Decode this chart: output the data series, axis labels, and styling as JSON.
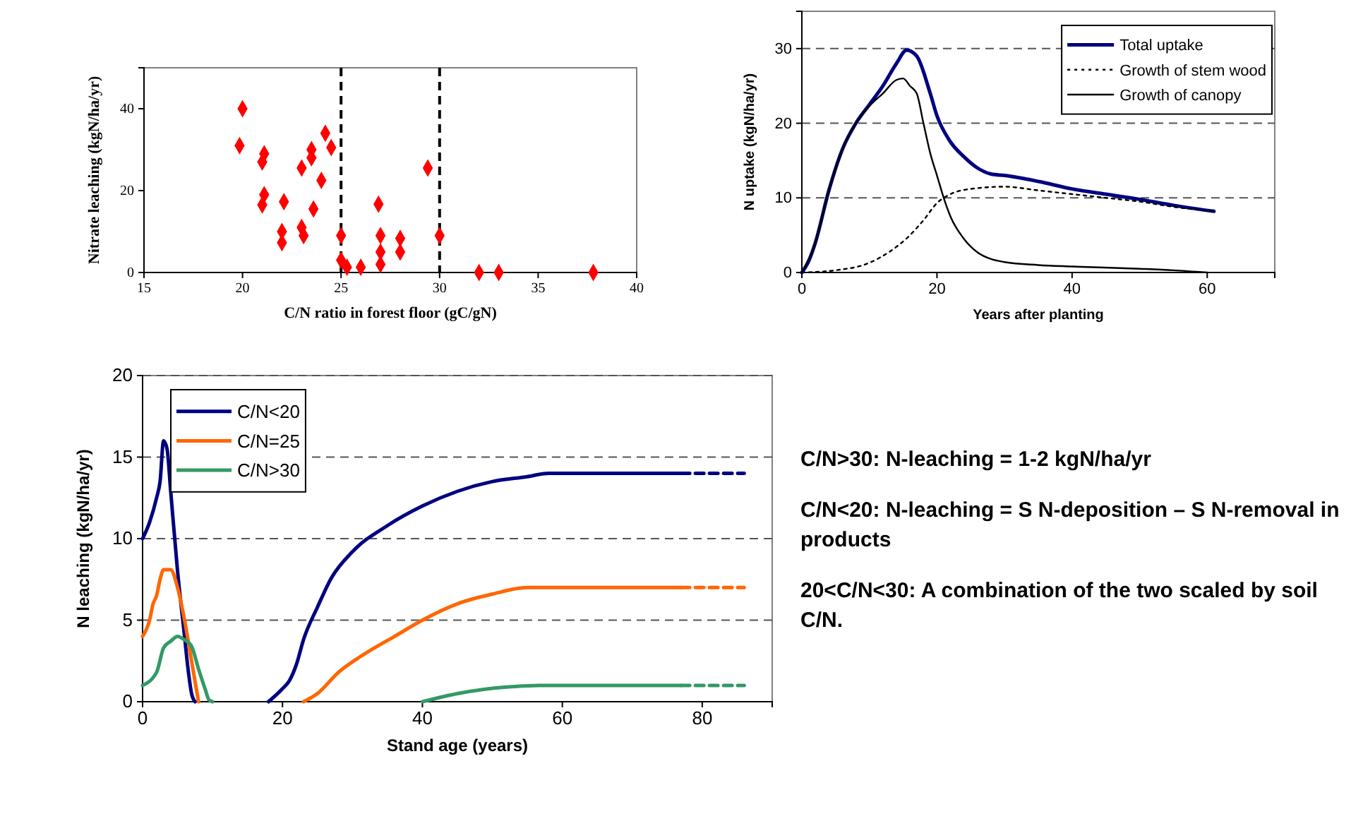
{
  "chart_data": [
    {
      "type": "scatter",
      "xlabel": "C/N ratio in forest floor (gC/gN)",
      "ylabel": "Nitrate leaching (kgN/ha/yr)",
      "marker": "diamond",
      "color": "#ff0000",
      "x": [
        19.85,
        20,
        21,
        21.1,
        21.1,
        21,
        22.1,
        22,
        22,
        23,
        23,
        23.1,
        23.5,
        23.5,
        23.6,
        24,
        24.2,
        24.5,
        25,
        25,
        25.3,
        26,
        26.9,
        27,
        27,
        27,
        28,
        28,
        29.4,
        30,
        32,
        33,
        37.8
      ],
      "values": [
        31,
        40,
        27,
        29,
        19,
        16.5,
        17.3,
        10,
        7.3,
        25.5,
        11,
        9,
        30,
        28,
        15.5,
        22.5,
        34,
        30.5,
        9,
        3,
        1.3,
        1.3,
        16.7,
        9,
        5,
        2,
        8.3,
        5,
        25.5,
        9,
        0,
        0,
        0
      ],
      "xlim": [
        15,
        40
      ],
      "xticks": [
        15,
        20,
        25,
        30,
        35,
        40
      ],
      "ylim": [
        0,
        50
      ],
      "yticks": [
        0,
        20,
        40
      ],
      "ref_lines": [
        {
          "axis": "x",
          "value": 25,
          "color": "#000000",
          "line_style": "dashed"
        },
        {
          "axis": "x",
          "value": 30,
          "color": "#000000",
          "line_style": "dashed"
        }
      ]
    },
    {
      "type": "line",
      "xlabel": "Years after planting",
      "ylabel": "N uptake (kgN/ha/yr)",
      "legend": "top right",
      "grid": "y",
      "xlim": [
        0,
        70
      ],
      "xticks": [
        0,
        20,
        40,
        60
      ],
      "ylim": [
        0,
        35
      ],
      "yticks": [
        0,
        10,
        20,
        30
      ],
      "series": [
        {
          "name": "Total uptake",
          "color": "#000080",
          "line_style": "solid",
          "x": [
            0,
            1,
            2,
            4,
            6,
            8,
            10,
            12,
            14,
            15.5,
            17,
            19,
            20,
            22,
            24,
            26,
            28,
            30,
            35,
            40,
            45,
            50,
            55,
            61
          ],
          "values": [
            0,
            1.5,
            4,
            11,
            16.5,
            20,
            22.5,
            25,
            28,
            29.8,
            29,
            24,
            21,
            17.5,
            15.5,
            14,
            13.2,
            13,
            12.2,
            11.2,
            10.5,
            9.8,
            9,
            8.2
          ]
        },
        {
          "name": "Growth of stem wood",
          "color": "#000000",
          "line_style": "dotted",
          "x": [
            0,
            5,
            10,
            13,
            16,
            18,
            20,
            22,
            25,
            30,
            35,
            40,
            45,
            50,
            55,
            61
          ],
          "values": [
            0,
            0.3,
            1.3,
            2.8,
            5,
            7,
            9.3,
            10.5,
            11.2,
            11.5,
            11,
            10.5,
            10,
            9.5,
            8.8,
            8.2
          ]
        },
        {
          "name": "Growth of canopy",
          "color": "#000000",
          "line_style": "solid",
          "x": [
            0,
            2,
            4,
            6,
            8,
            10,
            12,
            14,
            15,
            16,
            17,
            18,
            19,
            20,
            21,
            22,
            24,
            26,
            28,
            30,
            35,
            40,
            50,
            55,
            60
          ],
          "values": [
            0,
            4,
            11,
            16.5,
            20,
            22.3,
            24,
            25.8,
            26,
            25,
            24,
            20,
            16,
            13,
            10,
            7.5,
            4.5,
            2.7,
            1.8,
            1.4,
            1,
            0.8,
            0.5,
            0.3,
            0
          ]
        }
      ]
    },
    {
      "type": "line",
      "xlabel": "Stand age (years)",
      "ylabel": "N leaching (kgN/ha/yr)",
      "legend": "top left",
      "grid": "y",
      "xlim": [
        0,
        90
      ],
      "xticks": [
        0,
        20,
        40,
        60,
        80
      ],
      "ylim": [
        0,
        20
      ],
      "yticks": [
        0,
        5,
        10,
        15,
        20
      ],
      "series": [
        {
          "name": "C/N<20",
          "color": "#000080",
          "line_style": "solid",
          "x": [
            0,
            1,
            2,
            2.5,
            3,
            3.5,
            4,
            5,
            6,
            6.5,
            7,
            7.5,
            12,
            18,
            20,
            21,
            22,
            23,
            25,
            27,
            30,
            35,
            40,
            45,
            50,
            55,
            58,
            77
          ],
          "values": [
            10,
            11,
            12.5,
            13.5,
            16,
            15.5,
            13,
            8,
            4,
            2,
            0.5,
            0,
            null,
            0,
            0.8,
            1.3,
            2.3,
            3.8,
            5.8,
            7.6,
            9.2,
            10.8,
            12,
            12.9,
            13.5,
            13.8,
            14,
            14
          ]
        },
        {
          "name": "C/N=25",
          "color": "#ff6600",
          "line_style": "solid",
          "x": [
            0,
            1,
            1.5,
            2,
            2.5,
            3,
            4,
            5,
            6,
            7,
            8,
            15,
            23,
            25,
            28,
            32,
            36,
            40,
            45,
            50,
            55,
            60,
            77
          ],
          "values": [
            4,
            5,
            6,
            6.5,
            7.5,
            8.1,
            8.1,
            7,
            5,
            2.5,
            0,
            null,
            0,
            0.5,
            1.8,
            3,
            4,
            5,
            6,
            6.6,
            7,
            7,
            7
          ]
        },
        {
          "name": "C/N>30",
          "color": "#339966",
          "line_style": "solid",
          "x": [
            0,
            2,
            3,
            4,
            5,
            6,
            7,
            8,
            9,
            9.5,
            10,
            25,
            40,
            45,
            52,
            58,
            77
          ],
          "values": [
            1,
            1.8,
            3.3,
            3.7,
            4,
            3.8,
            3.4,
            2,
            0.7,
            0.1,
            0,
            null,
            0,
            0.5,
            0.9,
            1,
            1
          ]
        },
        {
          "color": "#000080",
          "line_style": "dashed",
          "x": [
            77,
            86
          ],
          "values": [
            14,
            14
          ]
        },
        {
          "color": "#ff6600",
          "line_style": "dashed",
          "x": [
            77,
            86
          ],
          "values": [
            7,
            7
          ]
        },
        {
          "color": "#339966",
          "line_style": "dashed",
          "x": [
            77,
            86
          ],
          "values": [
            1,
            1
          ]
        }
      ]
    },
    {
      "type": "other",
      "annotations": [
        "C/N>30: N-leaching = 1-2 kgN/ha/yr",
        "C/N<20: N-leaching = S N-deposition – S N-removal in products",
        "20<C/N<30: A combination of the two scaled by soil C/N."
      ]
    }
  ]
}
